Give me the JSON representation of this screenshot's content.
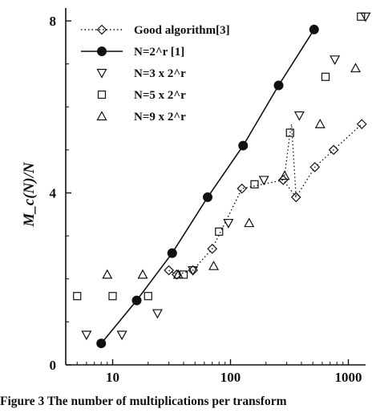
{
  "caption": "Figure 3  The number of multiplications per transform",
  "chart_data": {
    "type": "scatter",
    "title": "",
    "xlabel": "",
    "ylabel": "M_c(N)/N",
    "x_scale": "log",
    "xlim": [
      4,
      1400
    ],
    "ylim": [
      0,
      8.3
    ],
    "x_ticks": [
      {
        "value": 10,
        "label": "10"
      },
      {
        "value": 100,
        "label": "100"
      },
      {
        "value": 1000,
        "label": "1000"
      }
    ],
    "y_ticks": [
      {
        "value": 0,
        "label": "0"
      },
      {
        "value": 4,
        "label": "4"
      },
      {
        "value": 8,
        "label": "8"
      }
    ],
    "grid": false,
    "legend_position": "top-left",
    "series": [
      {
        "name": "Good algorithm[3]",
        "marker": "diamond",
        "line": "dotted",
        "points": [
          [
            30,
            2.2
          ],
          [
            35,
            2.1
          ],
          [
            48,
            2.2
          ],
          [
            70,
            2.7
          ],
          [
            125,
            4.1
          ],
          [
            280,
            4.3
          ],
          [
            360,
            3.9
          ],
          [
            520,
            4.6
          ],
          [
            750,
            5.0
          ],
          [
            1300,
            5.6
          ]
        ]
      },
      {
        "name": "N=2^r [1]",
        "marker": "filled-circle",
        "line": "solid",
        "points": [
          [
            8,
            0.5
          ],
          [
            16,
            1.5
          ],
          [
            32,
            2.6
          ],
          [
            64,
            3.9
          ],
          [
            128,
            5.1
          ],
          [
            256,
            6.5
          ],
          [
            512,
            7.8
          ]
        ]
      },
      {
        "name": "N=3 x 2^r",
        "marker": "triangle-down",
        "line": "none",
        "points": [
          [
            6,
            0.7
          ],
          [
            12,
            0.7
          ],
          [
            24,
            1.2
          ],
          [
            48,
            2.2
          ],
          [
            96,
            3.3
          ],
          [
            192,
            4.3
          ],
          [
            384,
            5.8
          ],
          [
            768,
            7.1
          ],
          [
            1400,
            8.1
          ]
        ]
      },
      {
        "name": "N=5 x 2^r",
        "marker": "square",
        "line": "none",
        "points": [
          [
            5,
            1.6
          ],
          [
            10,
            1.6
          ],
          [
            20,
            1.6
          ],
          [
            40,
            2.1
          ],
          [
            80,
            3.1
          ],
          [
            160,
            4.2
          ],
          [
            320,
            5.4
          ],
          [
            640,
            6.7
          ],
          [
            1280,
            8.1
          ]
        ]
      },
      {
        "name": "N=9 x 2^r",
        "marker": "triangle-up",
        "line": "none",
        "points": [
          [
            9,
            2.1
          ],
          [
            18,
            2.1
          ],
          [
            36,
            2.1
          ],
          [
            72,
            2.3
          ],
          [
            144,
            3.3
          ],
          [
            288,
            4.4
          ],
          [
            576,
            5.6
          ],
          [
            1152,
            6.9
          ]
        ]
      }
    ],
    "connector": {
      "style": "dotted",
      "points": [
        [
          288,
          4.4
        ],
        [
          320,
          5.4
        ],
        [
          330,
          5.6
        ],
        [
          360,
          3.9
        ]
      ]
    }
  }
}
